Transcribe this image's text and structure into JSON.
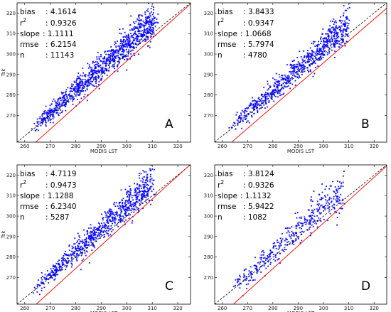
{
  "colors": {
    "points": "#0a0aff",
    "regression_line": "#ff0000",
    "one_to_one_line": "#000000",
    "frame": "#000000",
    "background": "#ffffff"
  },
  "chart_data": [
    {
      "type": "scatter",
      "panel_label": "A",
      "xlabel": "MODIS LST",
      "ylabel": "Tsk",
      "xlim": [
        257,
        325
      ],
      "ylim": [
        257,
        325
      ],
      "x_ticks": [
        "260",
        "270",
        "280",
        "290",
        "300",
        "310",
        "320"
      ],
      "y_ticks": [
        "270",
        "280",
        "290",
        "300",
        "310",
        "320"
      ],
      "grid": false,
      "stats": [
        {
          "key": "bias",
          "value": ": 4.1614"
        },
        {
          "key": "r2",
          "value": ": 0.9326"
        },
        {
          "key": "slope",
          "value": ": 1.1111"
        },
        {
          "key": "rmse",
          "value": ": 6.2154"
        },
        {
          "key": "n",
          "value": ": 11143"
        }
      ],
      "regression": {
        "slope": 1.1111,
        "bias": 4.1614
      },
      "one_to_one": true,
      "cloud": {
        "x_range": [
          264,
          311
        ],
        "count": 1100,
        "spread": 3.2
      }
    },
    {
      "type": "scatter",
      "panel_label": "B",
      "xlabel": "MODIS LST",
      "ylabel": "",
      "xlim": [
        257,
        325
      ],
      "ylim": [
        257,
        325
      ],
      "x_ticks": [
        "260",
        "270",
        "280",
        "290",
        "300",
        "310",
        "320"
      ],
      "y_ticks": [
        "270",
        "280",
        "290",
        "300",
        "310",
        "320"
      ],
      "grid": false,
      "stats": [
        {
          "key": "bias",
          "value": ": 3.8433"
        },
        {
          "key": "r2",
          "value": ": 0.9347"
        },
        {
          "key": "slope",
          "value": ": 1.0668"
        },
        {
          "key": "rmse",
          "value": ": 5.7974"
        },
        {
          "key": "n",
          "value": ": 4780"
        }
      ],
      "regression": {
        "slope": 1.0668,
        "bias": 3.8433
      },
      "one_to_one": true,
      "cloud": {
        "x_range": [
          264,
          310
        ],
        "count": 800,
        "spread": 3.0
      }
    },
    {
      "type": "scatter",
      "panel_label": "C",
      "xlabel": "MODIS LST",
      "ylabel": "Tsk",
      "xlim": [
        257,
        325
      ],
      "ylim": [
        257,
        325
      ],
      "x_ticks": [
        "260",
        "270",
        "280",
        "290",
        "300",
        "310",
        "320"
      ],
      "y_ticks": [
        "270",
        "280",
        "290",
        "300",
        "310",
        "320"
      ],
      "grid": false,
      "stats": [
        {
          "key": "bias",
          "value": ": 4.7119"
        },
        {
          "key": "r2",
          "value": ": 0.9473"
        },
        {
          "key": "slope",
          "value": ": 1.1288"
        },
        {
          "key": "rmse",
          "value": ": 6.2340"
        },
        {
          "key": "n",
          "value": ": 5287"
        }
      ],
      "regression": {
        "slope": 1.1288,
        "bias": 4.7119
      },
      "one_to_one": true,
      "cloud": {
        "x_range": [
          264,
          310
        ],
        "count": 850,
        "spread": 3.0
      }
    },
    {
      "type": "scatter",
      "panel_label": "D",
      "xlabel": "MODIS LST",
      "ylabel": "",
      "xlim": [
        257,
        325
      ],
      "ylim": [
        257,
        325
      ],
      "x_ticks": [
        "260",
        "270",
        "280",
        "290",
        "300",
        "310",
        "320"
      ],
      "y_ticks": [
        "270",
        "280",
        "290",
        "300",
        "310",
        "320"
      ],
      "grid": false,
      "stats": [
        {
          "key": "bias",
          "value": ": 3.8124"
        },
        {
          "key": "r2",
          "value": ": 0.9326"
        },
        {
          "key": "slope",
          "value": ": 1.1132"
        },
        {
          "key": "rmse",
          "value": ": 5.9422"
        },
        {
          "key": "n",
          "value": ": 1082"
        }
      ],
      "regression": {
        "slope": 1.1132,
        "bias": 3.8124
      },
      "one_to_one": true,
      "cloud": {
        "x_range": [
          264,
          308
        ],
        "count": 420,
        "spread": 3.4
      }
    }
  ]
}
